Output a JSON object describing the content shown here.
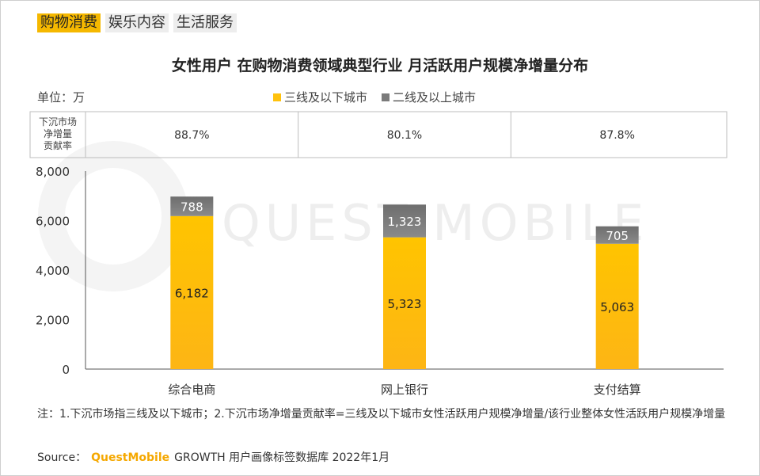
{
  "tabs": [
    {
      "label": "购物消费",
      "active": true
    },
    {
      "label": "娱乐内容",
      "active": false
    },
    {
      "label": "生活服务",
      "active": false
    }
  ],
  "colors": {
    "accent": "#f5b800",
    "series_top": "#7b7b7b",
    "series_bottom": "#ffc20e"
  },
  "unit_label": "单位：万",
  "watermark": "QUEST MOBILE",
  "note": "注：1.下沉市场指三线及以下城市；2.下沉市场净增量贡献率=三线及以下城市女性活跃用户规模净增量/该行业整体女性活跃用户规模净增量",
  "source": {
    "prefix": "Source：",
    "brand": "QuestMobile",
    "text": "GROWTH 用户画像标签数据库 2022年1月"
  },
  "chart_data": {
    "type": "bar",
    "stacked": true,
    "title": "女性用户 在购物消费领域典型行业 月活跃用户规模净增量分布",
    "categories": [
      "综合电商",
      "网上银行",
      "支付结算"
    ],
    "series": [
      {
        "name": "三线及以下城市",
        "values": [
          6182,
          5323,
          5063
        ]
      },
      {
        "name": "二线及以上城市",
        "values": [
          788,
          1323,
          705
        ]
      }
    ],
    "value_labels": {
      "三线及以下城市": [
        "6,182",
        "5,323",
        "5,063"
      ],
      "二线及以上城市": [
        "788",
        "1,323",
        "705"
      ]
    },
    "ylim": [
      0,
      8000
    ],
    "yticks": [
      "8,000",
      "6,000",
      "4,000",
      "2,000",
      "0"
    ],
    "ytick_values": [
      8000,
      6000,
      4000,
      2000,
      0
    ],
    "legend_position": "top-center",
    "table": {
      "row_label": "下沉市场净增量贡献率",
      "values": [
        "88.7%",
        "80.1%",
        "87.8%"
      ]
    }
  }
}
